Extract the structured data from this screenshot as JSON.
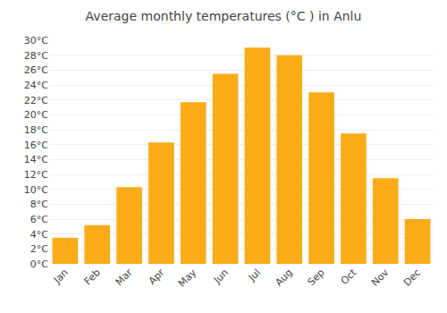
{
  "chart_data": {
    "type": "bar",
    "title": "Average monthly temperatures (°C ) in Anlu",
    "categories": [
      "Jan",
      "Feb",
      "Mar",
      "Apr",
      "May",
      "Jun",
      "Jul",
      "Aug",
      "Sep",
      "Oct",
      "Nov",
      "Dec"
    ],
    "values": [
      3.5,
      5.2,
      10.3,
      16.3,
      21.7,
      25.5,
      29.0,
      28.0,
      23.0,
      17.5,
      11.5,
      6.0
    ],
    "color": "#FBAB18",
    "ylim": [
      0,
      30
    ],
    "yticks": [
      {
        "value": 0,
        "label": "0°C"
      },
      {
        "value": 2,
        "label": "2°C"
      },
      {
        "value": 4,
        "label": "4°C"
      },
      {
        "value": 6,
        "label": "6°C"
      },
      {
        "value": 8,
        "label": "8°C"
      },
      {
        "value": 10,
        "label": "10°C"
      },
      {
        "value": 12,
        "label": "12°C"
      },
      {
        "value": 14,
        "label": "14°C"
      },
      {
        "value": 16,
        "label": "16°C"
      },
      {
        "value": 18,
        "label": "18°C"
      },
      {
        "value": 20,
        "label": "20°C"
      },
      {
        "value": 22,
        "label": "22°C"
      },
      {
        "value": 24,
        "label": "24°C"
      },
      {
        "value": 26,
        "label": "26°C"
      },
      {
        "value": 28,
        "label": "28°C"
      },
      {
        "value": 30,
        "label": "30°C"
      }
    ],
    "grid": true
  }
}
